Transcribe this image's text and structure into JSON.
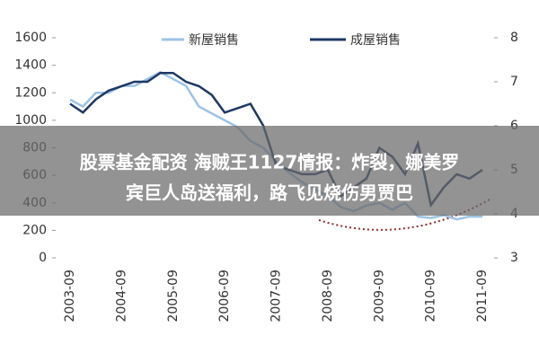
{
  "chart_data": {
    "type": "line",
    "categories": [
      "2003-09",
      null,
      null,
      null,
      "2004-09",
      null,
      null,
      null,
      "2005-09",
      null,
      null,
      null,
      "2006-09",
      null,
      null,
      null,
      "2007-09",
      null,
      null,
      null,
      "2008-09",
      null,
      null,
      null,
      "2009-09",
      null,
      null,
      null,
      "2010-09",
      null,
      null,
      null,
      "2011-09"
    ],
    "series": [
      {
        "name": "新屋销售",
        "color": "#9dc3e6",
        "values": [
          1150,
          1100,
          1200,
          1200,
          1250,
          1250,
          1300,
          1350,
          1300,
          1250,
          1100,
          1050,
          1000,
          950,
          850,
          800,
          700,
          620,
          550,
          500,
          450,
          370,
          340,
          380,
          400,
          350,
          400,
          300,
          290,
          310,
          280,
          300,
          300
        ]
      },
      {
        "name": "成屋销售",
        "color": "#1f3864",
        "axis": "y2",
        "values": [
          6.5,
          6.3,
          6.6,
          6.8,
          6.9,
          7.0,
          7.0,
          7.2,
          7.2,
          7.0,
          6.9,
          6.7,
          6.3,
          6.4,
          6.5,
          6.0,
          5.1,
          5.0,
          4.9,
          4.9,
          5.0,
          4.4,
          4.6,
          4.8,
          5.5,
          5.3,
          4.9,
          5.6,
          4.2,
          4.6,
          4.9,
          4.8,
          5.0
        ]
      }
    ],
    "ylim": [
      0,
      1600
    ],
    "yticks": [
      0,
      200,
      400,
      600,
      800,
      1000,
      1200,
      1400,
      1600
    ],
    "y2lim": [
      3,
      8
    ],
    "y2ticks": [
      3,
      4,
      5,
      6,
      7,
      8
    ],
    "legend": "top",
    "banner": [
      "股票基金配资 海贼王1127情报：炸裂，娜美罗",
      "宾巨人岛送福利，路飞见烧伤男贾巴"
    ]
  }
}
